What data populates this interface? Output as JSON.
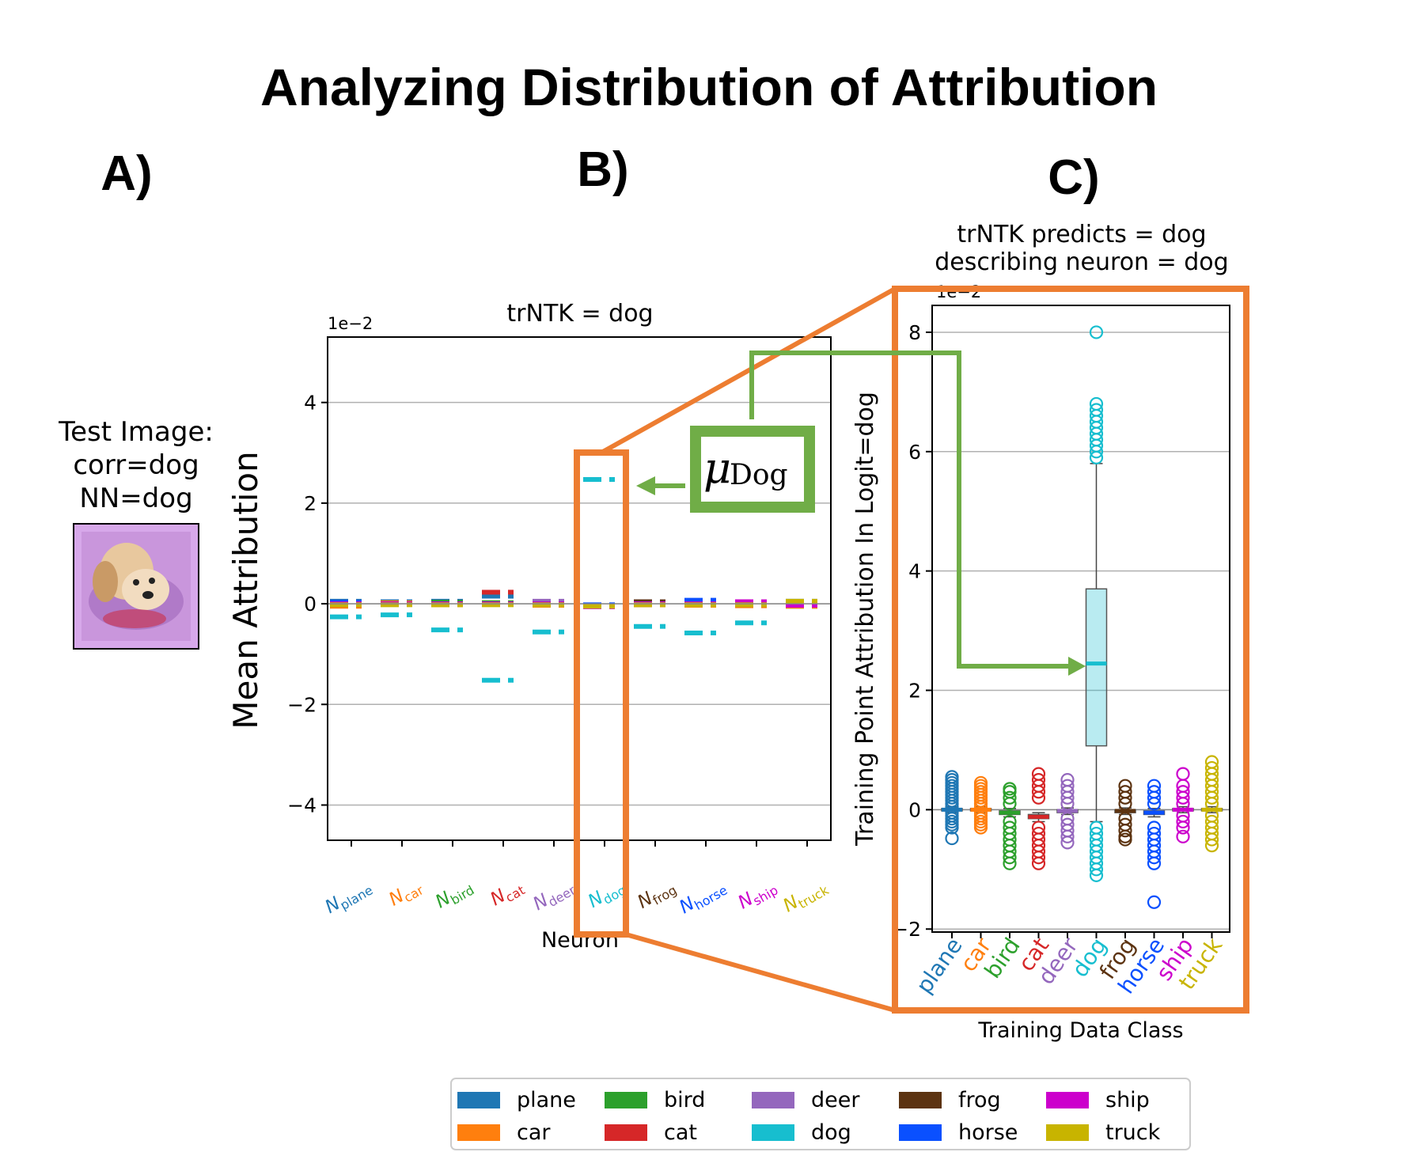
{
  "figure": {
    "title": "Analyzing Distribution of Attribution",
    "panel_labels": [
      "A)",
      "B)",
      "C)"
    ]
  },
  "panel_a": {
    "lines": [
      "Test Image:",
      "corr=dog",
      "NN=dog"
    ],
    "image_icon": "puppy-photo"
  },
  "colors": {
    "plane": "#1f77b4",
    "car": "#ff7f0e",
    "bird": "#2ca02c",
    "cat": "#d62728",
    "deer": "#9467bd",
    "dog": "#17becf",
    "frog": "#5c3311",
    "horse": "#0a50ff",
    "ship": "#cc00cc",
    "truck": "#c8b400",
    "highlight": "#ed7d31",
    "mu_box": "#70ad47"
  },
  "annotation": {
    "mu_symbol": "μ",
    "mu_subscript": "Dog"
  },
  "legend": {
    "placement": "bottom-center",
    "items": [
      "plane",
      "car",
      "bird",
      "cat",
      "deer",
      "dog",
      "frog",
      "horse",
      "ship",
      "truck"
    ]
  },
  "chart_data": [
    {
      "id": "B",
      "type": "scatter",
      "title": "trNTK = dog",
      "xlabel": "Neuron",
      "ylabel": "Mean Attribution",
      "scale_label": "1e−2",
      "ylim": [
        -4.7,
        5.3
      ],
      "yticks": [
        4,
        2,
        0,
        -2,
        -4
      ],
      "ytick_labels": [
        "4",
        "2",
        "0",
        "−2",
        "−4"
      ],
      "grid": true,
      "neurons": [
        "plane",
        "car",
        "bird",
        "cat",
        "deer",
        "dog",
        "frog",
        "horse",
        "ship",
        "truck"
      ],
      "neuron_tick_labels": [
        "plane",
        "car",
        "bird",
        "cat",
        "deer",
        "dog",
        "frog",
        "horse",
        "ship",
        "truck"
      ],
      "neuron_symbol": "N",
      "series": [
        {
          "name": "plane",
          "values": [
            0.05,
            0.04,
            0.05,
            0.15,
            0.02,
            -0.03,
            0.02,
            0.04,
            0.0,
            0.05
          ]
        },
        {
          "name": "car",
          "values": [
            -0.05,
            0.02,
            -0.02,
            0.02,
            -0.03,
            -0.05,
            -0.02,
            -0.03,
            -0.04,
            -0.05
          ]
        },
        {
          "name": "bird",
          "values": [
            0.0,
            0.0,
            0.03,
            0.02,
            0.0,
            -0.04,
            0.0,
            0.02,
            -0.02,
            -0.02
          ]
        },
        {
          "name": "cat",
          "values": [
            -0.02,
            0.0,
            0.0,
            0.23,
            0.0,
            -0.05,
            -0.02,
            0.0,
            -0.02,
            -0.03
          ]
        },
        {
          "name": "deer",
          "values": [
            0.0,
            0.0,
            0.0,
            0.0,
            0.05,
            -0.03,
            0.0,
            0.0,
            0.0,
            0.0
          ]
        },
        {
          "name": "dog",
          "values": [
            -0.26,
            -0.22,
            -0.52,
            -1.52,
            -0.56,
            2.47,
            -0.45,
            -0.58,
            -0.38,
            -0.05
          ]
        },
        {
          "name": "frog",
          "values": [
            0.0,
            0.0,
            0.0,
            0.0,
            0.0,
            -0.03,
            0.04,
            0.0,
            0.0,
            0.0
          ]
        },
        {
          "name": "horse",
          "values": [
            0.03,
            0.0,
            0.0,
            0.0,
            0.0,
            -0.02,
            0.0,
            0.07,
            0.0,
            0.0
          ]
        },
        {
          "name": "ship",
          "values": [
            0.0,
            0.0,
            0.0,
            0.0,
            0.0,
            -0.06,
            0.0,
            0.0,
            0.04,
            -0.03
          ]
        },
        {
          "name": "truck",
          "values": [
            -0.02,
            -0.02,
            -0.02,
            -0.02,
            -0.02,
            -0.05,
            -0.02,
            -0.02,
            -0.02,
            0.05
          ]
        }
      ]
    },
    {
      "id": "C",
      "type": "box",
      "title": "trNTK predicts = dog",
      "subtitle": "describing neuron = dog",
      "xlabel": "Training Data Class",
      "ylabel": "Training Point Attribution In Logit=dog",
      "scale_label": "1e−2",
      "ylim": [
        -2.05,
        8.45
      ],
      "yticks": [
        8,
        6,
        4,
        2,
        0,
        -2
      ],
      "ytick_labels": [
        "8",
        "6",
        "4",
        "2",
        "0",
        "−2"
      ],
      "grid": true,
      "categories": [
        "plane",
        "car",
        "bird",
        "cat",
        "deer",
        "dog",
        "frog",
        "horse",
        "ship",
        "truck"
      ],
      "boxes": [
        {
          "name": "plane",
          "median": 0.0,
          "q1": -0.02,
          "q3": 0.02,
          "whisker_low": -0.05,
          "whisker_high": 0.05,
          "outliers": [
            0.55,
            0.5,
            0.45,
            0.4,
            0.35,
            0.3,
            0.25,
            0.2,
            0.15,
            0.1,
            0.05,
            -0.05,
            -0.1,
            -0.15,
            -0.2,
            -0.25,
            -0.3,
            -0.48
          ]
        },
        {
          "name": "car",
          "median": 0.0,
          "q1": -0.02,
          "q3": 0.02,
          "whisker_low": -0.05,
          "whisker_high": 0.05,
          "outliers": [
            0.45,
            0.4,
            0.35,
            0.3,
            0.25,
            0.2,
            0.15,
            0.1,
            0.05,
            -0.05,
            -0.1,
            -0.15,
            -0.2,
            -0.25,
            -0.3
          ]
        },
        {
          "name": "bird",
          "median": -0.05,
          "q1": -0.08,
          "q3": -0.02,
          "whisker_low": -0.12,
          "whisker_high": 0.02,
          "outliers": [
            0.35,
            0.3,
            0.2,
            0.1,
            -0.2,
            -0.3,
            -0.4,
            -0.5,
            -0.6,
            -0.7,
            -0.8,
            -0.9
          ]
        },
        {
          "name": "cat",
          "median": -0.12,
          "q1": -0.15,
          "q3": -0.08,
          "whisker_low": -0.2,
          "whisker_high": -0.05,
          "outliers": [
            0.6,
            0.5,
            0.4,
            0.3,
            0.2,
            -0.3,
            -0.4,
            -0.5,
            -0.6,
            -0.7,
            -0.8,
            -0.9
          ]
        },
        {
          "name": "deer",
          "median": -0.02,
          "q1": -0.05,
          "q3": 0.0,
          "whisker_low": -0.08,
          "whisker_high": 0.03,
          "outliers": [
            0.5,
            0.4,
            0.3,
            0.2,
            0.1,
            -0.15,
            -0.25,
            -0.35,
            -0.45,
            -0.55
          ]
        },
        {
          "name": "dog",
          "median": 2.45,
          "q1": 1.07,
          "q3": 3.7,
          "whisker_low": -0.2,
          "whisker_high": 5.8,
          "outliers": [
            8.0,
            6.8,
            6.7,
            6.6,
            6.5,
            6.4,
            6.3,
            6.2,
            6.1,
            6.0,
            5.9,
            -0.3,
            -0.4,
            -0.5,
            -0.6,
            -0.7,
            -0.8,
            -0.9,
            -1.0,
            -1.1
          ]
        },
        {
          "name": "frog",
          "median": -0.02,
          "q1": -0.05,
          "q3": 0.0,
          "whisker_low": -0.08,
          "whisker_high": 0.03,
          "outliers": [
            0.4,
            0.3,
            0.2,
            0.1,
            -0.15,
            -0.25,
            -0.35,
            -0.45,
            -0.5
          ]
        },
        {
          "name": "horse",
          "median": -0.05,
          "q1": -0.08,
          "q3": -0.02,
          "whisker_low": -0.12,
          "whisker_high": 0.02,
          "outliers": [
            0.4,
            0.3,
            0.2,
            0.1,
            -0.3,
            -0.4,
            -0.5,
            -0.6,
            -0.7,
            -0.8,
            -0.9,
            -1.55
          ]
        },
        {
          "name": "ship",
          "median": 0.0,
          "q1": -0.02,
          "q3": 0.02,
          "whisker_low": -0.05,
          "whisker_high": 0.05,
          "outliers": [
            0.6,
            0.4,
            0.3,
            0.2,
            0.1,
            -0.1,
            -0.2,
            -0.3,
            -0.45
          ]
        },
        {
          "name": "truck",
          "median": 0.0,
          "q1": -0.02,
          "q3": 0.02,
          "whisker_low": -0.05,
          "whisker_high": 0.05,
          "outliers": [
            0.8,
            0.7,
            0.6,
            0.5,
            0.4,
            0.3,
            0.2,
            0.1,
            -0.1,
            -0.2,
            -0.3,
            -0.4,
            -0.5,
            -0.6
          ]
        }
      ]
    }
  ]
}
